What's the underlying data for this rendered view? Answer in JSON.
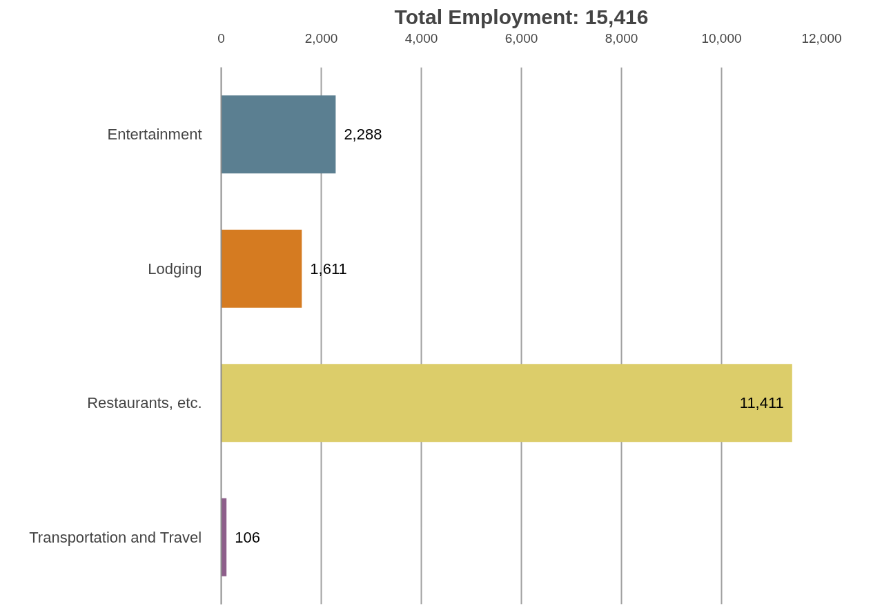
{
  "chart_data": {
    "type": "bar",
    "orientation": "horizontal",
    "title": "Total Employment: 15,416",
    "categories": [
      "Entertainment",
      "Lodging",
      "Restaurants, etc.",
      "Transportation and Travel"
    ],
    "values": [
      2288,
      1611,
      11411,
      106
    ],
    "colors": [
      "#5b7f91",
      "#d57b21",
      "#dccd6a",
      "#8e5f8b"
    ],
    "xlim": [
      0,
      12000
    ],
    "xticks": [
      {
        "value": 0,
        "label": "0"
      },
      {
        "value": 2000,
        "label": "2,000"
      },
      {
        "value": 4000,
        "label": "4,000"
      },
      {
        "value": 6000,
        "label": "6,000"
      },
      {
        "value": 8000,
        "label": "8,000"
      },
      {
        "value": 10000,
        "label": "10,000"
      },
      {
        "value": 12000,
        "label": "12,000"
      }
    ],
    "value_labels": [
      "2,288",
      "1,611",
      "11,411",
      "106"
    ],
    "grid": "x"
  }
}
